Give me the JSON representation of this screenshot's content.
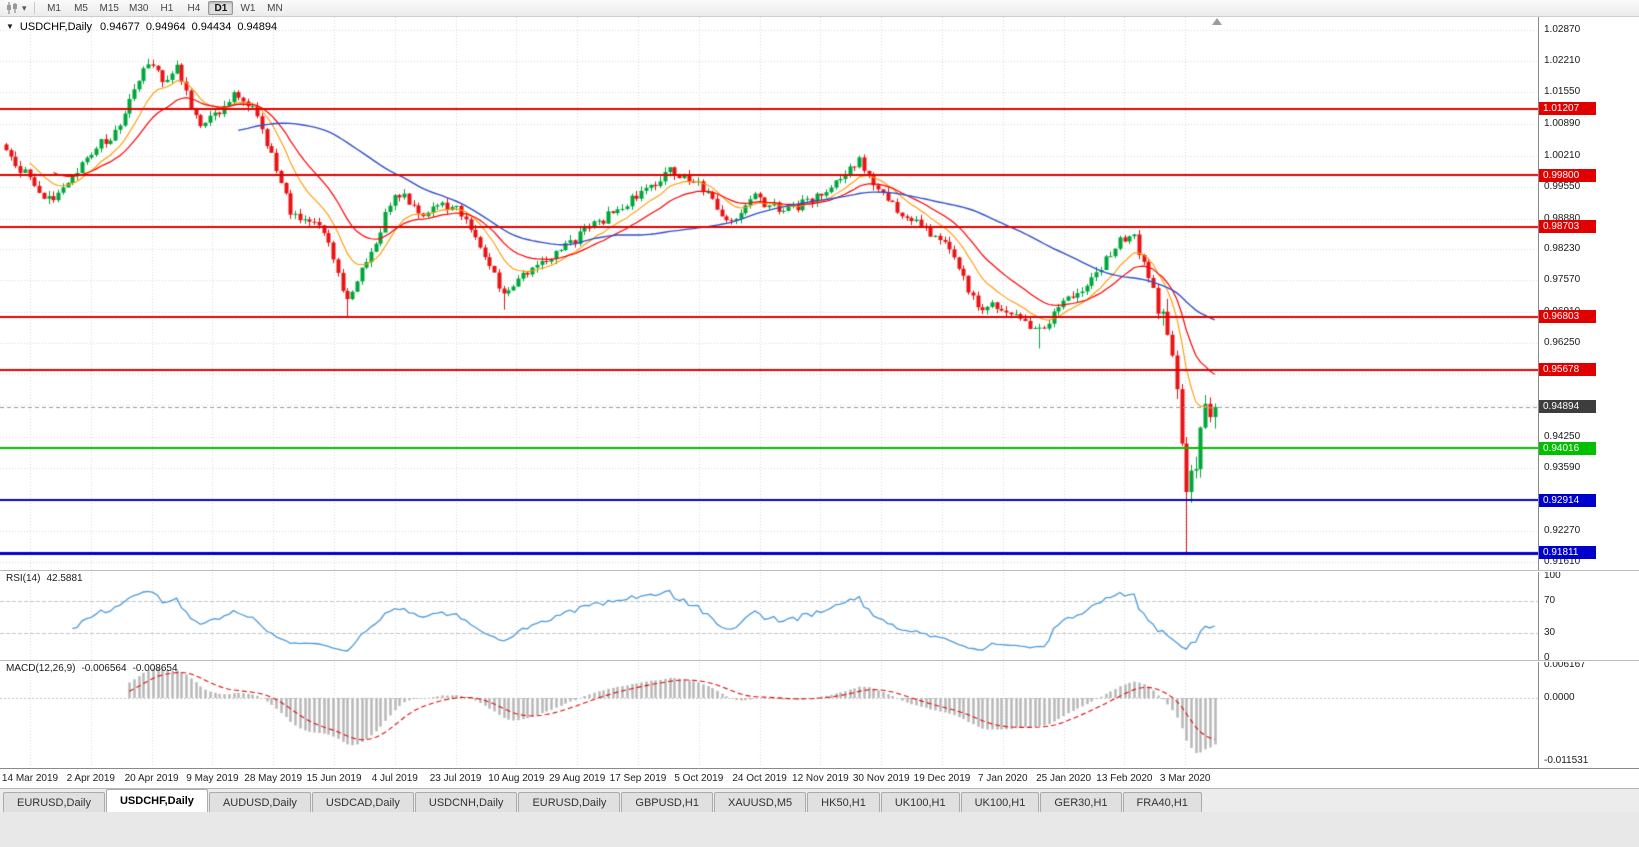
{
  "toolbar": {
    "timeframes": [
      "M1",
      "M5",
      "M15",
      "M30",
      "H1",
      "H4",
      "D1",
      "W1",
      "MN"
    ],
    "active_timeframe": "D1"
  },
  "chart": {
    "title": {
      "symbol": "USDCHF,Daily",
      "open": "0.94677",
      "high": "0.94964",
      "low": "0.94434",
      "close": "0.94894"
    }
  },
  "right_axis": {
    "price_ticks": [
      "1.02870",
      "1.02210",
      "1.01550",
      "1.00890",
      "1.00210",
      "0.99550",
      "0.98880",
      "0.98230",
      "0.97570",
      "0.96910",
      "0.96250",
      "0.95590",
      "0.94930",
      "0.94250",
      "0.93590",
      "0.92930",
      "0.92270",
      "0.91610"
    ],
    "rsi_ticks": [
      {
        "label": "100",
        "value": 100
      },
      {
        "label": "70",
        "value": 70
      },
      {
        "label": "30",
        "value": 30
      },
      {
        "label": "0",
        "value": 0
      }
    ],
    "macd_ticks": [
      {
        "label": "0.006167",
        "value": 0.006167
      },
      {
        "label": "0.0000",
        "value": 0
      },
      {
        "label": "-0.011531",
        "value": -0.011531
      }
    ]
  },
  "rsi": {
    "label": "RSI(14)",
    "value": "42.5881",
    "overbought": 70,
    "oversold": 30,
    "line_color": "#4f9bdb"
  },
  "macd": {
    "label": "MACD(12,26,9)",
    "value_main": "-0.006564",
    "value_signal": "-0.008654",
    "hist_color": "#b5b5b5",
    "signal_color": "#e01010"
  },
  "date_axis": [
    "14 Mar 2019",
    "2 Apr 2019",
    "20 Apr 2019",
    "9 May 2019",
    "28 May 2019",
    "15 Jun 2019",
    "4 Jul 2019",
    "23 Jul 2019",
    "10 Aug 2019",
    "29 Aug 2019",
    "17 Sep 2019",
    "5 Oct 2019",
    "24 Oct 2019",
    "12 Nov 2019",
    "30 Nov 2019",
    "19 Dec 2019",
    "7 Jan 2020",
    "25 Jan 2020",
    "13 Feb 2020",
    "3 Mar 2020"
  ],
  "tabs": {
    "active_index": 1,
    "items": [
      "EURUSD,Daily",
      "USDCHF,Daily",
      "AUDUSD,Daily",
      "USDCAD,Daily",
      "USDCNH,Daily",
      "EURUSD,Daily",
      "GBPUSD,H1",
      "XAUUSD,M5",
      "HK50,H1",
      "UK100,H1",
      "UK100,H1",
      "GER30,H1",
      "FRA40,H1"
    ]
  },
  "chart_data": {
    "type": "candlestick",
    "symbol": "USDCHF",
    "timeframe": "Daily",
    "current_ohlc": {
      "open": 0.94677,
      "high": 0.94964,
      "low": 0.94434,
      "close": 0.94894
    },
    "visible_price_range": [
      0.91441,
      1.03145
    ],
    "candle_count": 256,
    "colors": {
      "up": "#00a63c",
      "down": "#e81313",
      "ma_fast": "#ff9900",
      "ma_mid": "#ff0000",
      "ma_slow": "#3050c8",
      "grid": "#dadada"
    },
    "moving_averages": [
      {
        "type": "ema",
        "period": 10,
        "color_key": "ma_fast"
      },
      {
        "type": "ema",
        "period": 20,
        "color_key": "ma_mid"
      },
      {
        "type": "sma",
        "period": 50,
        "color_key": "ma_slow"
      }
    ],
    "price_keypoints": [
      [
        0,
        1.003
      ],
      [
        9,
        0.9925
      ],
      [
        18,
        1.003
      ],
      [
        23,
        1.007
      ],
      [
        27,
        1.016
      ],
      [
        30,
        1.0215
      ],
      [
        33,
        1.0185
      ],
      [
        36,
        1.0205
      ],
      [
        41,
        1.008
      ],
      [
        48,
        1.0148
      ],
      [
        53,
        1.011
      ],
      [
        60,
        0.9905
      ],
      [
        67,
        0.9862
      ],
      [
        72,
        0.9715
      ],
      [
        78,
        0.984
      ],
      [
        82,
        0.9945
      ],
      [
        88,
        0.99
      ],
      [
        95,
        0.9922
      ],
      [
        100,
        0.9822
      ],
      [
        105,
        0.9732
      ],
      [
        112,
        0.979
      ],
      [
        120,
        0.9845
      ],
      [
        128,
        0.99
      ],
      [
        134,
        0.994
      ],
      [
        140,
        0.9992
      ],
      [
        147,
        0.995
      ],
      [
        153,
        0.9876
      ],
      [
        158,
        0.993
      ],
      [
        164,
        0.9902
      ],
      [
        172,
        0.9936
      ],
      [
        180,
        1.0014
      ],
      [
        186,
        0.9924
      ],
      [
        193,
        0.9872
      ],
      [
        198,
        0.9832
      ],
      [
        205,
        0.9706
      ],
      [
        212,
        0.9692
      ],
      [
        218,
        0.9648
      ],
      [
        222,
        0.97
      ],
      [
        228,
        0.9752
      ],
      [
        235,
        0.9838
      ],
      [
        238,
        0.985
      ],
      [
        243,
        0.9702
      ],
      [
        246,
        0.9622
      ],
      [
        249,
        0.9302
      ],
      [
        251,
        0.9372
      ],
      [
        253,
        0.952
      ],
      [
        254,
        0.94677
      ],
      [
        255,
        0.94894
      ]
    ],
    "spikes": [
      {
        "i": 30,
        "h": 1.0226
      },
      {
        "i": 72,
        "l": 0.968
      },
      {
        "i": 105,
        "l": 0.9695
      },
      {
        "i": 218,
        "l": 0.9613
      },
      {
        "i": 249,
        "l": 0.9181
      }
    ],
    "levels": [
      {
        "price": 1.01207,
        "label": "1.01207",
        "color": "#e00000",
        "width": 2
      },
      {
        "price": 0.998,
        "label": "0.99800",
        "color": "#e00000",
        "width": 2
      },
      {
        "price": 0.98703,
        "label": "0.98703",
        "color": "#e00000",
        "width": 2
      },
      {
        "price": 0.96803,
        "label": "0.96803",
        "color": "#e00000",
        "width": 2
      },
      {
        "price": 0.95678,
        "label": "0.95678",
        "color": "#e00000",
        "width": 2
      },
      {
        "price": 0.94016,
        "label": "0.94016",
        "color": "#00c000",
        "width": 2
      },
      {
        "price": 0.92914,
        "label": "0.92914",
        "color": "#0000cc",
        "width": 2
      },
      {
        "price": 0.91811,
        "label": "0.91811",
        "color": "#0000cc",
        "width": 3
      }
    ],
    "current_price": {
      "value": 0.94894,
      "label": "0.94894",
      "badge_color": "#3d3d3d"
    }
  }
}
